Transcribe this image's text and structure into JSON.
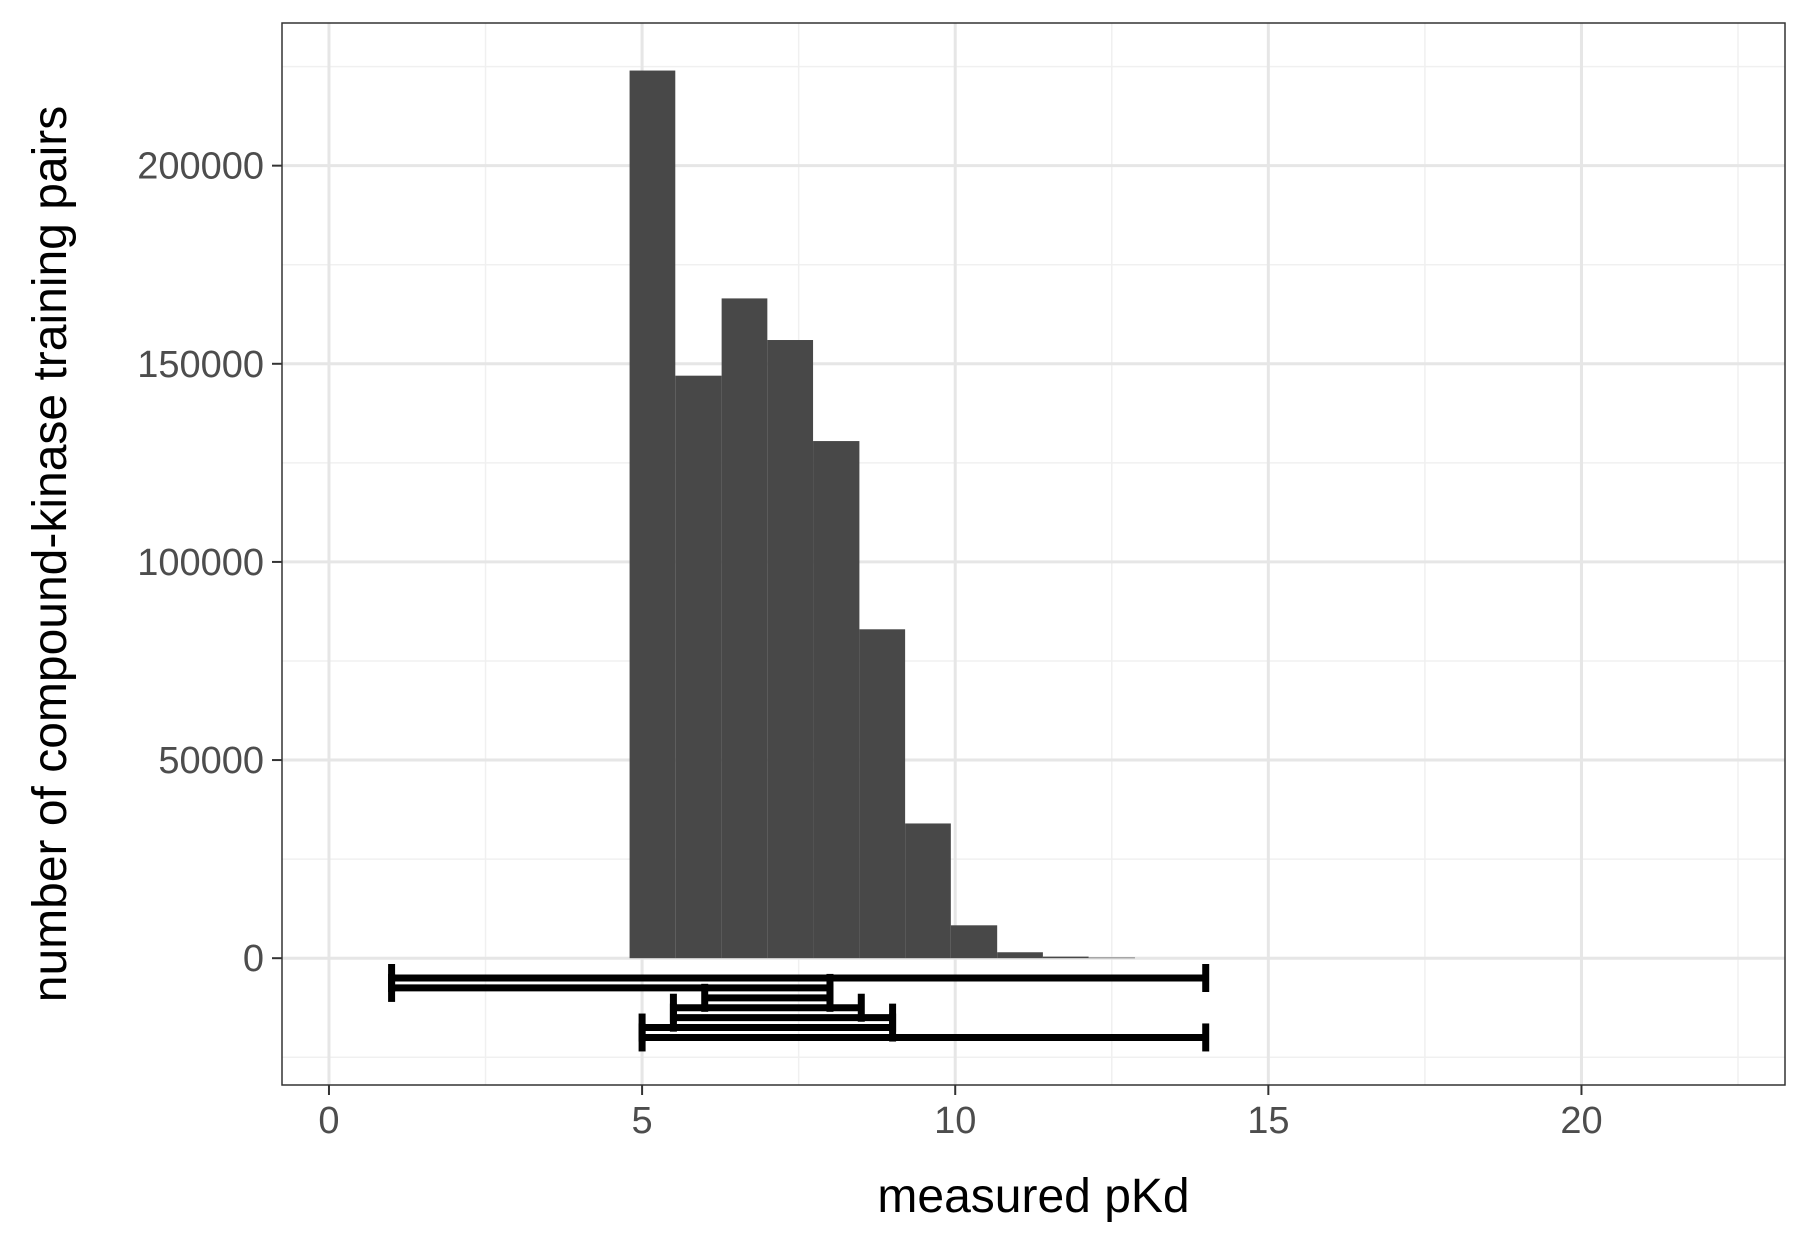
{
  "chart_data": {
    "type": "bar",
    "subtype": "histogram",
    "title": "",
    "xlabel": "measured pKd",
    "ylabel": "number of compound-kinase training pairs",
    "xlim": [
      -0.75,
      23.25
    ],
    "ylim": [
      -32000,
      236000
    ],
    "x_ticks": [
      0,
      5,
      10,
      15,
      20
    ],
    "x_tick_labels": [
      "0",
      "5",
      "10",
      "15",
      "20"
    ],
    "y_ticks": [
      0,
      50000,
      100000,
      150000,
      200000
    ],
    "y_tick_labels": [
      "0",
      "50000",
      "100000",
      "150000",
      "200000"
    ],
    "grid": true,
    "bar_color": "#484848",
    "bins": [
      {
        "x0": 4.8,
        "x1": 5.53,
        "count": 224000
      },
      {
        "x0": 5.53,
        "x1": 6.27,
        "count": 147000
      },
      {
        "x0": 6.27,
        "x1": 7.0,
        "count": 166500
      },
      {
        "x0": 7.0,
        "x1": 7.73,
        "count": 156000
      },
      {
        "x0": 7.73,
        "x1": 8.47,
        "count": 130500
      },
      {
        "x0": 8.47,
        "x1": 9.2,
        "count": 83000
      },
      {
        "x0": 9.2,
        "x1": 9.93,
        "count": 34000
      },
      {
        "x0": 9.93,
        "x1": 10.67,
        "count": 8300
      },
      {
        "x0": 10.67,
        "x1": 11.4,
        "count": 1500
      },
      {
        "x0": 11.4,
        "x1": 12.13,
        "count": 400
      },
      {
        "x0": 12.13,
        "x1": 12.87,
        "count": 150
      }
    ],
    "ranges": [
      {
        "xmin": 1,
        "xmax": 14,
        "y": -5000
      },
      {
        "xmin": 1,
        "xmax": 8,
        "y": -7500
      },
      {
        "xmin": 6,
        "xmax": 8,
        "y": -10000
      },
      {
        "xmin": 5.5,
        "xmax": 8.5,
        "y": -12500
      },
      {
        "xmin": 5.5,
        "xmax": 9,
        "y": -15000
      },
      {
        "xmin": 5,
        "xmax": 9,
        "y": -17500
      },
      {
        "xmin": 5,
        "xmax": 14,
        "y": -20000
      }
    ],
    "range_color": "#000000"
  }
}
